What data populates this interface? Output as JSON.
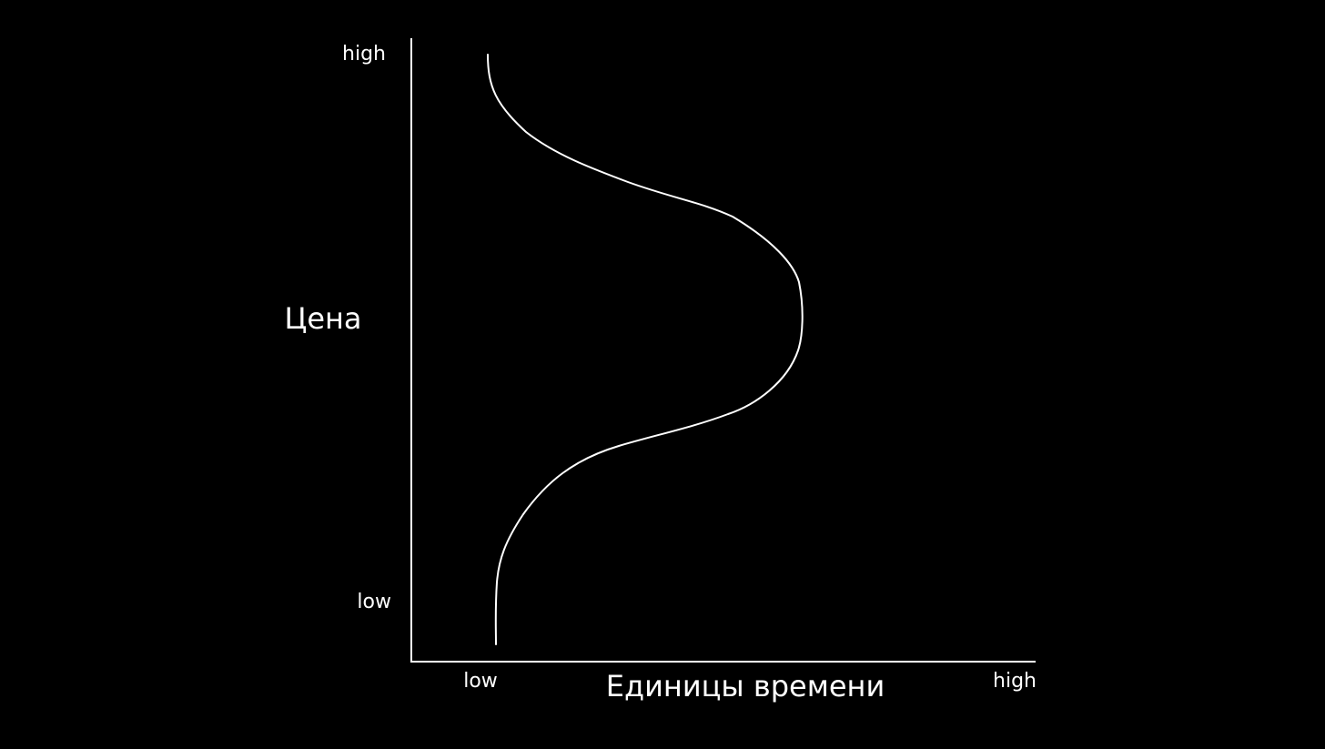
{
  "y_axis": {
    "label": "Цена",
    "high": "high",
    "low": "low"
  },
  "x_axis": {
    "label": "Единицы времени",
    "low": "low",
    "high": "high"
  }
}
